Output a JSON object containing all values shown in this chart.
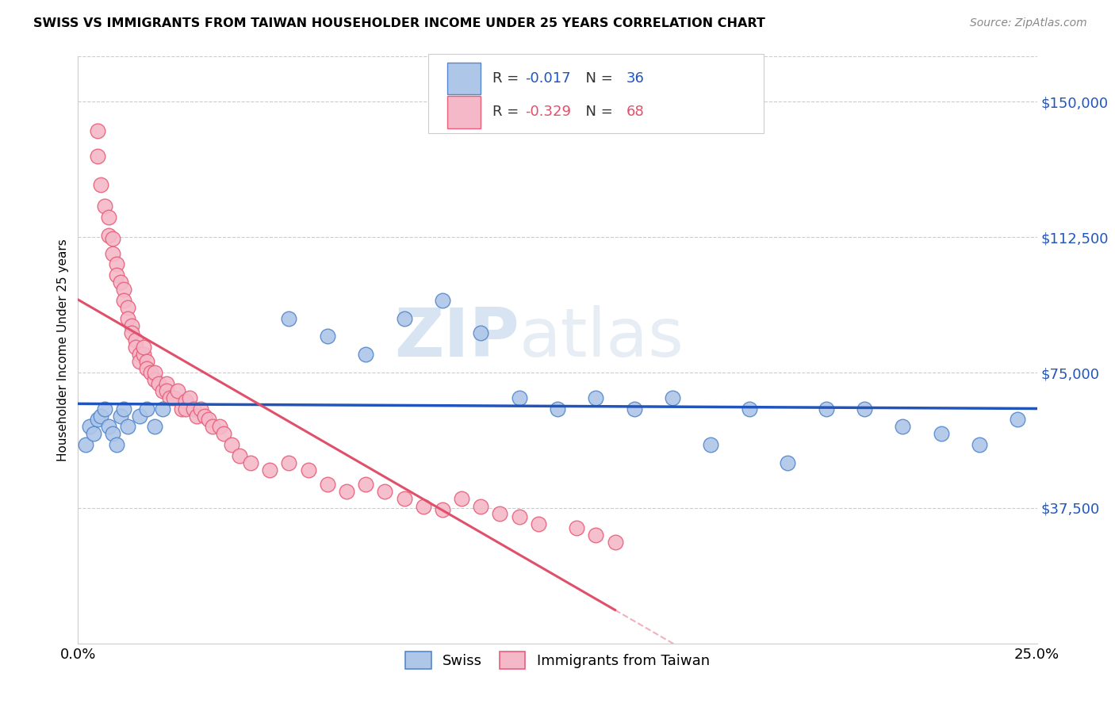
{
  "title": "SWISS VS IMMIGRANTS FROM TAIWAN HOUSEHOLDER INCOME UNDER 25 YEARS CORRELATION CHART",
  "source": "Source: ZipAtlas.com",
  "ylabel": "Householder Income Under 25 years",
  "ytick_labels": [
    "$150,000",
    "$112,500",
    "$75,000",
    "$37,500"
  ],
  "ytick_values": [
    150000,
    112500,
    75000,
    37500
  ],
  "ylim": [
    0,
    162500
  ],
  "xlim": [
    0.0,
    0.25
  ],
  "legend_swiss_R": "-0.017",
  "legend_swiss_N": "36",
  "legend_taiwan_R": "-0.329",
  "legend_taiwan_N": "68",
  "swiss_color": "#aec6e8",
  "taiwan_color": "#f5b8c8",
  "swiss_edge_color": "#5588cc",
  "taiwan_edge_color": "#e8607a",
  "swiss_line_color": "#2255bb",
  "taiwan_line_color": "#e0506a",
  "swiss_x": [
    0.002,
    0.003,
    0.004,
    0.005,
    0.006,
    0.007,
    0.008,
    0.009,
    0.01,
    0.011,
    0.012,
    0.013,
    0.016,
    0.018,
    0.02,
    0.022,
    0.055,
    0.065,
    0.075,
    0.085,
    0.095,
    0.105,
    0.115,
    0.125,
    0.135,
    0.145,
    0.155,
    0.165,
    0.175,
    0.185,
    0.195,
    0.205,
    0.215,
    0.225,
    0.235,
    0.245
  ],
  "swiss_y": [
    55000,
    60000,
    58000,
    62000,
    63000,
    65000,
    60000,
    58000,
    55000,
    63000,
    65000,
    60000,
    63000,
    65000,
    60000,
    65000,
    90000,
    85000,
    80000,
    90000,
    95000,
    86000,
    68000,
    65000,
    68000,
    65000,
    68000,
    55000,
    65000,
    50000,
    65000,
    65000,
    60000,
    58000,
    55000,
    62000
  ],
  "taiwan_x": [
    0.005,
    0.005,
    0.006,
    0.007,
    0.008,
    0.008,
    0.009,
    0.009,
    0.01,
    0.01,
    0.011,
    0.012,
    0.012,
    0.013,
    0.013,
    0.014,
    0.014,
    0.015,
    0.015,
    0.016,
    0.016,
    0.017,
    0.017,
    0.018,
    0.018,
    0.019,
    0.02,
    0.02,
    0.021,
    0.022,
    0.023,
    0.023,
    0.024,
    0.025,
    0.026,
    0.027,
    0.028,
    0.028,
    0.029,
    0.03,
    0.031,
    0.032,
    0.033,
    0.034,
    0.035,
    0.037,
    0.038,
    0.04,
    0.042,
    0.045,
    0.05,
    0.055,
    0.06,
    0.065,
    0.07,
    0.075,
    0.08,
    0.085,
    0.09,
    0.095,
    0.1,
    0.105,
    0.11,
    0.115,
    0.12,
    0.13,
    0.135,
    0.14
  ],
  "taiwan_y": [
    142000,
    135000,
    127000,
    121000,
    118000,
    113000,
    112000,
    108000,
    105000,
    102000,
    100000,
    98000,
    95000,
    93000,
    90000,
    88000,
    86000,
    84000,
    82000,
    80000,
    78000,
    80000,
    82000,
    78000,
    76000,
    75000,
    73000,
    75000,
    72000,
    70000,
    72000,
    70000,
    68000,
    68000,
    70000,
    65000,
    67000,
    65000,
    68000,
    65000,
    63000,
    65000,
    63000,
    62000,
    60000,
    60000,
    58000,
    55000,
    52000,
    50000,
    48000,
    50000,
    48000,
    44000,
    42000,
    44000,
    42000,
    40000,
    38000,
    37000,
    40000,
    38000,
    36000,
    35000,
    33000,
    32000,
    30000,
    28000
  ]
}
